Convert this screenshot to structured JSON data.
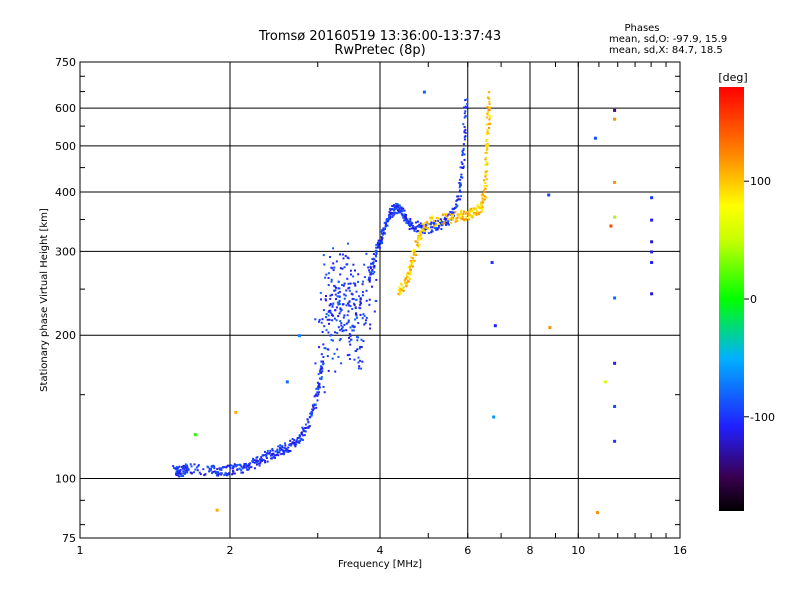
{
  "chart_data": {
    "type": "scatter",
    "title": "Tromsø 20160519 13:36:00-13:37:43",
    "subtitle": "RwPretec (8p)",
    "xlabel": "Frequency [MHz]",
    "ylabel": "Stationary phase Virtual Height [km]",
    "x_scale": "log",
    "y_scale": "log",
    "xlim": [
      1,
      16
    ],
    "ylim": [
      75,
      750
    ],
    "grid": true,
    "x_ticks": [
      1,
      2,
      4,
      6,
      8,
      10,
      16
    ],
    "x_tick_labels": [
      "1",
      "2",
      "4",
      "6",
      "8",
      "10",
      "16"
    ],
    "y_ticks": [
      75,
      100,
      200,
      300,
      400,
      500,
      600,
      750
    ],
    "y_tick_labels": [
      "75",
      "100",
      "200",
      "300",
      "400",
      "500",
      "600",
      "750"
    ],
    "phases_box": {
      "heading": "Phases",
      "line_o": "mean, sd,O: -97.9, 15.9",
      "line_x": "mean, sd,X:  84.7, 18.5"
    },
    "colorbar": {
      "label": "[deg]",
      "range": [
        -180,
        180
      ],
      "ticks": [
        100,
        0,
        -100
      ],
      "tick_labels": [
        "100",
        "0",
        "-100"
      ]
    },
    "o_trace": [
      [
        1.55,
        104
      ],
      [
        1.58,
        103
      ],
      [
        1.62,
        104
      ],
      [
        1.65,
        105
      ],
      [
        1.82,
        104
      ],
      [
        1.9,
        104
      ],
      [
        2.0,
        104
      ],
      [
        2.1,
        105
      ],
      [
        2.2,
        107
      ],
      [
        2.3,
        109
      ],
      [
        2.4,
        112
      ],
      [
        2.5,
        114
      ],
      [
        2.6,
        116
      ],
      [
        2.7,
        119
      ],
      [
        2.8,
        124
      ],
      [
        2.9,
        135
      ],
      [
        3.0,
        150
      ],
      [
        3.05,
        170
      ],
      [
        3.1,
        190
      ],
      [
        3.15,
        210
      ],
      [
        3.2,
        230
      ],
      [
        3.25,
        250
      ],
      [
        3.3,
        270
      ],
      [
        3.35,
        255
      ],
      [
        3.4,
        235
      ],
      [
        3.45,
        215
      ],
      [
        3.5,
        200
      ],
      [
        3.55,
        205
      ],
      [
        3.6,
        220
      ],
      [
        3.7,
        240
      ],
      [
        3.8,
        265
      ],
      [
        3.9,
        290
      ],
      [
        4.0,
        315
      ],
      [
        4.1,
        340
      ],
      [
        4.2,
        360
      ],
      [
        4.3,
        370
      ],
      [
        4.4,
        365
      ],
      [
        4.5,
        352
      ],
      [
        4.6,
        342
      ],
      [
        4.8,
        336
      ],
      [
        5.0,
        336
      ],
      [
        5.2,
        340
      ],
      [
        5.4,
        345
      ],
      [
        5.6,
        360
      ],
      [
        5.8,
        400
      ],
      [
        5.9,
        500
      ],
      [
        5.95,
        640
      ]
    ],
    "x_trace": [
      [
        4.35,
        245
      ],
      [
        4.5,
        258
      ],
      [
        4.6,
        275
      ],
      [
        4.7,
        300
      ],
      [
        4.8,
        325
      ],
      [
        5.0,
        345
      ],
      [
        5.5,
        352
      ],
      [
        5.8,
        356
      ],
      [
        6.0,
        358
      ],
      [
        6.2,
        362
      ],
      [
        6.4,
        372
      ],
      [
        6.5,
        400
      ],
      [
        6.55,
        480
      ],
      [
        6.6,
        560
      ],
      [
        6.62,
        640
      ]
    ],
    "o_phase_deg": -100,
    "x_phase_deg": 100,
    "scattered_points": [
      {
        "x": 1.7,
        "y": 124,
        "phase": 10
      },
      {
        "x": 1.88,
        "y": 86,
        "phase": 110
      },
      {
        "x": 2.05,
        "y": 138,
        "phase": 110
      },
      {
        "x": 2.6,
        "y": 160,
        "phase": -80
      },
      {
        "x": 2.75,
        "y": 200,
        "phase": -70
      },
      {
        "x": 4.9,
        "y": 650,
        "phase": -80
      },
      {
        "x": 6.7,
        "y": 285,
        "phase": -100
      },
      {
        "x": 6.75,
        "y": 135,
        "phase": -60
      },
      {
        "x": 6.8,
        "y": 210,
        "phase": -110
      },
      {
        "x": 8.7,
        "y": 395,
        "phase": -95
      },
      {
        "x": 8.75,
        "y": 208,
        "phase": 120
      },
      {
        "x": 10.8,
        "y": 520,
        "phase": -90
      },
      {
        "x": 10.9,
        "y": 85,
        "phase": 120
      },
      {
        "x": 11.3,
        "y": 160,
        "phase": 60
      },
      {
        "x": 11.6,
        "y": 340,
        "phase": 150
      },
      {
        "x": 11.8,
        "y": 595,
        "phase": -140
      },
      {
        "x": 11.8,
        "y": 570,
        "phase": 120
      },
      {
        "x": 11.8,
        "y": 420,
        "phase": 120
      },
      {
        "x": 11.8,
        "y": 355,
        "phase": 40
      },
      {
        "x": 11.8,
        "y": 240,
        "phase": -80
      },
      {
        "x": 11.8,
        "y": 175,
        "phase": -110
      },
      {
        "x": 11.8,
        "y": 142,
        "phase": -90
      },
      {
        "x": 11.8,
        "y": 120,
        "phase": -100
      },
      {
        "x": 14.0,
        "y": 390,
        "phase": -100
      },
      {
        "x": 14.0,
        "y": 350,
        "phase": -110
      },
      {
        "x": 14.0,
        "y": 315,
        "phase": -120
      },
      {
        "x": 14.0,
        "y": 300,
        "phase": -115
      },
      {
        "x": 14.0,
        "y": 285,
        "phase": -110
      },
      {
        "x": 14.0,
        "y": 245,
        "phase": -120
      }
    ]
  }
}
